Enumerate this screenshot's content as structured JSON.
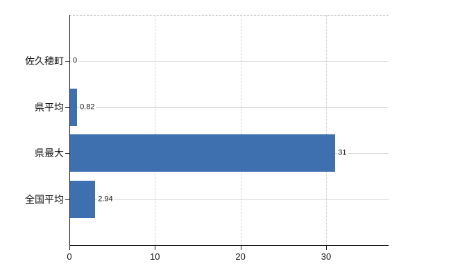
{
  "chart_data": {
    "type": "bar",
    "orientation": "horizontal",
    "title": "",
    "categories": [
      "佐久穂町",
      "県平均",
      "県最大",
      "全国平均"
    ],
    "values": [
      0,
      0.82,
      31,
      2.94
    ],
    "value_labels": [
      "0",
      "0.82",
      "31",
      "2.94"
    ],
    "x_ticks": [
      0,
      10,
      20,
      30
    ],
    "x_tick_labels": [
      "0",
      "10",
      "20",
      "30"
    ],
    "xlim": [
      0,
      37.3
    ],
    "grid": true,
    "legend": "none",
    "bar_color": "#3e6fae",
    "grid_color": "#d6d6d6",
    "top_border_color": "#cccccc",
    "axis_color": "#1a1a1a",
    "text_color": "#111111"
  }
}
